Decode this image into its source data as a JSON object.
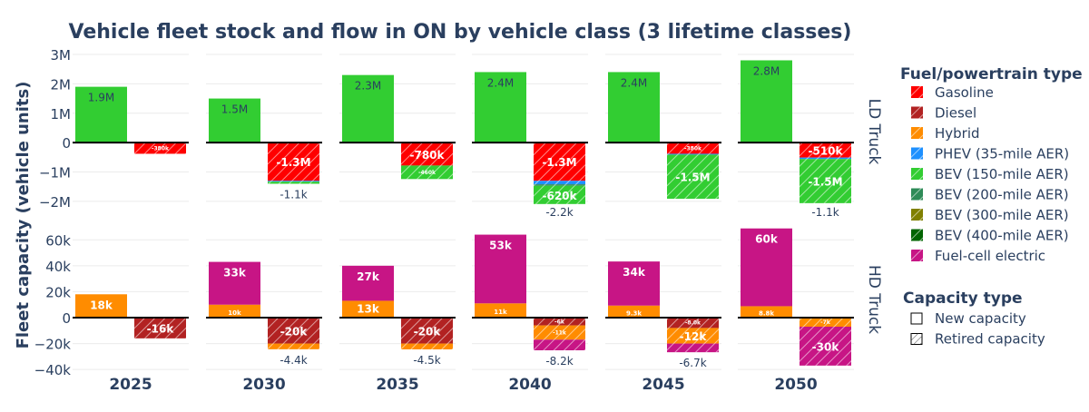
{
  "chart_data": {
    "type": "bar",
    "title": "Vehicle fleet stock and flow in ON by vehicle class (3 lifetime classes)",
    "ylabel": "Fleet capacity (vehicle units)",
    "years": [
      "2025",
      "2030",
      "2035",
      "2040",
      "2045",
      "2050"
    ],
    "rows": [
      {
        "name": "LD Truck",
        "ylim": [
          -2.25,
          3.0
        ],
        "unit": "M",
        "ticks": [
          {
            "v": 3,
            "label": "3M"
          },
          {
            "v": 2,
            "label": "2M"
          },
          {
            "v": 1,
            "label": "1M"
          },
          {
            "v": 0,
            "label": "0"
          },
          {
            "v": -1,
            "label": "−1M"
          },
          {
            "v": -2,
            "label": "−2M"
          }
        ],
        "new": [
          [
            {
              "fuel": "BEV (150-mile AER)",
              "value": 1.9,
              "label": "1.9M"
            }
          ],
          [
            {
              "fuel": "BEV (150-mile AER)",
              "value": 1.5,
              "label": "1.5M"
            }
          ],
          [
            {
              "fuel": "BEV (150-mile AER)",
              "value": 2.3,
              "label": "2.3M"
            }
          ],
          [
            {
              "fuel": "BEV (150-mile AER)",
              "value": 2.4,
              "label": "2.4M"
            }
          ],
          [
            {
              "fuel": "BEV (150-mile AER)",
              "value": 2.4,
              "label": "2.4M"
            }
          ],
          [
            {
              "fuel": "BEV (150-mile AER)",
              "value": 2.8,
              "label": "2.8M"
            }
          ]
        ],
        "retired": [
          [
            {
              "fuel": "Gasoline",
              "value": -0.38,
              "label": "-380k"
            }
          ],
          [
            {
              "fuel": "Gasoline",
              "value": -1.3,
              "label": "-1.3M"
            },
            {
              "fuel": "PHEV (35-mile AER)",
              "value": -0.03,
              "label": ""
            },
            {
              "fuel": "BEV (150-mile AER)",
              "value": -0.07,
              "label": ""
            }
          ],
          [
            {
              "fuel": "Gasoline",
              "value": -0.78,
              "label": "-780k"
            },
            {
              "fuel": "BEV (150-mile AER)",
              "value": -0.46,
              "label": "-460k"
            }
          ],
          [
            {
              "fuel": "Gasoline",
              "value": -1.3,
              "label": "-1.3M"
            },
            {
              "fuel": "PHEV (35-mile AER)",
              "value": -0.12,
              "label": ""
            },
            {
              "fuel": "BEV (200-mile AER)",
              "value": -0.05,
              "label": ""
            },
            {
              "fuel": "BEV (150-mile AER)",
              "value": -0.62,
              "label": "-620k"
            }
          ],
          [
            {
              "fuel": "Gasoline",
              "value": -0.38,
              "label": "-380k"
            },
            {
              "fuel": "PHEV (35-mile AER)",
              "value": -0.03,
              "label": ""
            },
            {
              "fuel": "BEV (150-mile AER)",
              "value": -1.5,
              "label": "-1.5M"
            }
          ],
          [
            {
              "fuel": "Gasoline",
              "value": -0.51,
              "label": "-510k"
            },
            {
              "fuel": "PHEV (35-mile AER)",
              "value": -0.05,
              "label": ""
            },
            {
              "fuel": "BEV (150-mile AER)",
              "value": -1.5,
              "label": "-1.5M"
            }
          ]
        ],
        "total_labels": [
          "",
          "-1.1k",
          "",
          "-2.2k",
          "",
          "-1.1k"
        ]
      },
      {
        "name": "HD Truck",
        "ylim": [
          -42,
          70
        ],
        "unit": "k",
        "ticks": [
          {
            "v": 60,
            "label": "60k"
          },
          {
            "v": 40,
            "label": "40k"
          },
          {
            "v": 20,
            "label": "20k"
          },
          {
            "v": 0,
            "label": "0"
          },
          {
            "v": -20,
            "label": "−20k"
          },
          {
            "v": -40,
            "label": "−40k"
          }
        ],
        "new": [
          [
            {
              "fuel": "Hybrid",
              "value": 18,
              "label": "18k"
            }
          ],
          [
            {
              "fuel": "Hybrid",
              "value": 10,
              "label": "10k"
            },
            {
              "fuel": "Fuel-cell electric",
              "value": 33,
              "label": "33k"
            }
          ],
          [
            {
              "fuel": "Hybrid",
              "value": 13,
              "label": "13k"
            },
            {
              "fuel": "Fuel-cell electric",
              "value": 27,
              "label": "27k"
            }
          ],
          [
            {
              "fuel": "Hybrid",
              "value": 11,
              "label": "11k"
            },
            {
              "fuel": "Fuel-cell electric",
              "value": 53,
              "label": "53k"
            }
          ],
          [
            {
              "fuel": "Hybrid",
              "value": 9.3,
              "label": "9.3k"
            },
            {
              "fuel": "Fuel-cell electric",
              "value": 34,
              "label": "34k"
            }
          ],
          [
            {
              "fuel": "Hybrid",
              "value": 8.8,
              "label": "8.8k"
            },
            {
              "fuel": "Fuel-cell electric",
              "value": 60,
              "label": "60k"
            }
          ]
        ],
        "retired": [
          [
            {
              "fuel": "Diesel",
              "value": -16,
              "label": "-16k"
            }
          ],
          [
            {
              "fuel": "Diesel",
              "value": -20,
              "label": "-20k"
            },
            {
              "fuel": "Hybrid",
              "value": -4.4,
              "label": ""
            }
          ],
          [
            {
              "fuel": "Diesel",
              "value": -20,
              "label": "-20k"
            },
            {
              "fuel": "Hybrid",
              "value": -4.5,
              "label": ""
            }
          ],
          [
            {
              "fuel": "Diesel",
              "value": -6,
              "label": "-6k"
            },
            {
              "fuel": "Hybrid",
              "value": -11,
              "label": "-11k"
            },
            {
              "fuel": "Fuel-cell electric",
              "value": -8.2,
              "label": ""
            }
          ],
          [
            {
              "fuel": "Diesel",
              "value": -8.0,
              "label": "-8.0k"
            },
            {
              "fuel": "Hybrid",
              "value": -12,
              "label": "-12k"
            },
            {
              "fuel": "Fuel-cell electric",
              "value": -6.7,
              "label": ""
            }
          ],
          [
            {
              "fuel": "Hybrid",
              "value": -7,
              "label": "-7k"
            },
            {
              "fuel": "Fuel-cell electric",
              "value": -30,
              "label": "-30k"
            }
          ]
        ],
        "total_labels": [
          "",
          "-4.4k",
          "-4.5k",
          "-8.2k",
          "-6.7k",
          ""
        ]
      }
    ],
    "legend": {
      "fuel_title": "Fuel/powertrain type",
      "fuels": [
        {
          "name": "Gasoline",
          "color": "#ff0000"
        },
        {
          "name": "Diesel",
          "color": "#b22222"
        },
        {
          "name": "Hybrid",
          "color": "#ff8c00"
        },
        {
          "name": "PHEV (35-mile AER)",
          "color": "#1e90ff"
        },
        {
          "name": "BEV (150-mile AER)",
          "color": "#32cd32"
        },
        {
          "name": "BEV (200-mile AER)",
          "color": "#2e8b57"
        },
        {
          "name": "BEV (300-mile AER)",
          "color": "#808000"
        },
        {
          "name": "BEV (400-mile AER)",
          "color": "#006400"
        },
        {
          "name": "Fuel-cell electric",
          "color": "#c71585"
        }
      ],
      "capacity_title": "Capacity type",
      "capacity_types": [
        "New capacity",
        "Retired capacity"
      ]
    },
    "grid": true,
    "legend_position": "right"
  }
}
